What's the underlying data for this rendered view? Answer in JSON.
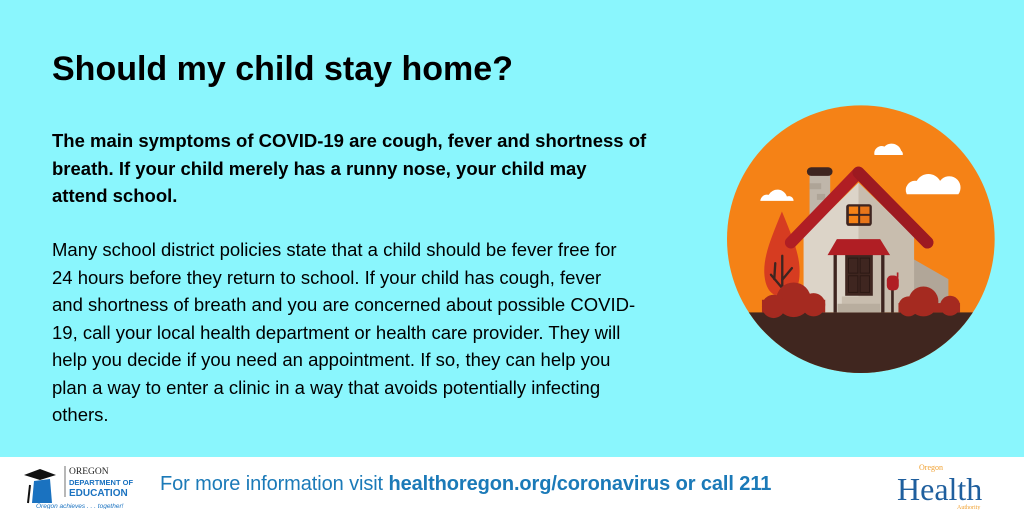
{
  "title": "Should my child stay home?",
  "lead_lines": [
    "The main symptoms of COVID-19 are cough, fever and shortness of",
    "breath. If your child merely has a runny nose, your child may",
    "attend school."
  ],
  "body_lines": [
    "Many school district policies state that a child should be fever free for",
    "24 hours before they return to school. If your child has cough, fever",
    "and shortness of breath and you are concerned about possible COVID-",
    "19, call your local health department or health care provider. They will",
    "help you decide if you need an appointment. If so, they can help you",
    "plan a way to enter a clinic in a way that avoids potentially infecting",
    "others."
  ],
  "footer": {
    "prefix": "For more information visit ",
    "link": "healthoregon.org/coronavirus or call 211",
    "ode_logo": {
      "line1": "OREGON",
      "line2": "DEPARTMENT OF",
      "line3": "EDUCATION",
      "tagline": "Oregon achieves . . . together!"
    },
    "oha_logo": {
      "top": "Oregon",
      "main": "Health",
      "bottom": "Authority"
    }
  },
  "colors": {
    "background": "#8af6fd",
    "accent_blue": "#1b7ab8",
    "orange": "#f58216",
    "roof_red": "#b01e24"
  },
  "illustration": "house-icon"
}
